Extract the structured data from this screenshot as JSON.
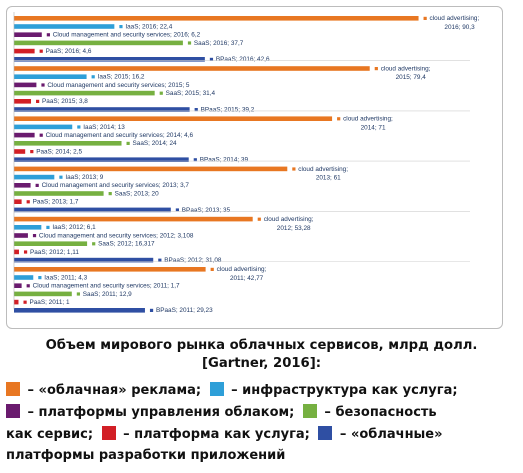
{
  "chart_data": {
    "type": "bar",
    "orientation": "horizontal",
    "groups": [
      {
        "year": "2016",
        "bars": [
          {
            "label": "cloud advertising; 2016; 90,3",
            "value": 90.3
          },
          {
            "label": "IaaS; 2016; 22,4",
            "value": 22.4
          },
          {
            "label": "Cloud management and security services; 2016; 6,2",
            "value": 6.2
          },
          {
            "label": "SaaS; 2016; 37,7",
            "value": 37.7
          },
          {
            "label": "PaaS; 2016; 4,6",
            "value": 4.6
          },
          {
            "label": "BPaaS; 2016; 42,6",
            "value": 42.6
          }
        ]
      },
      {
        "year": "2015",
        "bars": [
          {
            "label": "cloud advertising; 2015; 79,4",
            "value": 79.4
          },
          {
            "label": "IaaS; 2015; 16,2",
            "value": 16.2
          },
          {
            "label": "Cloud management and security services; 2015; 5",
            "value": 5
          },
          {
            "label": "SaaS; 2015; 31,4",
            "value": 31.4
          },
          {
            "label": "PaaS; 2015; 3,8",
            "value": 3.8
          },
          {
            "label": "BPaaS; 2015; 39,2",
            "value": 39.2
          }
        ]
      },
      {
        "year": "2014",
        "bars": [
          {
            "label": "cloud advertising; 2014; 71",
            "value": 71
          },
          {
            "label": "IaaS; 2014; 13",
            "value": 13
          },
          {
            "label": "Cloud management and security services; 2014; 4,6",
            "value": 4.6
          },
          {
            "label": "SaaS; 2014; 24",
            "value": 24
          },
          {
            "label": "PaaS; 2014; 2,5",
            "value": 2.5
          },
          {
            "label": "BPaaS; 2014; 39",
            "value": 39
          }
        ]
      },
      {
        "year": "2013",
        "bars": [
          {
            "label": "cloud advertising; 2013; 61",
            "value": 61
          },
          {
            "label": "IaaS; 2013; 9",
            "value": 9
          },
          {
            "label": "Cloud management and security services; 2013; 3,7",
            "value": 3.7
          },
          {
            "label": "SaaS; 2013; 20",
            "value": 20
          },
          {
            "label": "PaaS; 2013; 1,7",
            "value": 1.7
          },
          {
            "label": "BPaaS; 2013; 35",
            "value": 35
          }
        ]
      },
      {
        "year": "2012",
        "bars": [
          {
            "label": "cloud advertising; 2012; 53,28",
            "value": 53.28
          },
          {
            "label": "IaaS; 2012; 6,1",
            "value": 6.1
          },
          {
            "label": "Cloud management and security services; 2012; 3,108",
            "value": 3.108
          },
          {
            "label": "SaaS; 2012; 16,317",
            "value": 16.317
          },
          {
            "label": "PaaS; 2012; 1,11",
            "value": 1.11
          },
          {
            "label": "BPaaS; 2012; 31,08",
            "value": 31.08
          }
        ]
      },
      {
        "year": "2011",
        "bars": [
          {
            "label": "cloud advertising; 2011; 42,77",
            "value": 42.77
          },
          {
            "label": "IaaS; 2011; 4,3",
            "value": 4.3
          },
          {
            "label": "Cloud management and security services; 2011; 1,7",
            "value": 1.7
          },
          {
            "label": "SaaS; 2011; 12,9",
            "value": 12.9
          },
          {
            "label": "PaaS; 2011; 1",
            "value": 1
          },
          {
            "label": "BPaaS; 2011; 29,23",
            "value": 29.23
          }
        ]
      }
    ],
    "series_colors": [
      "#e87722",
      "#2e9fd8",
      "#6a1b6e",
      "#76b041",
      "#d21f26",
      "#2f4fa3"
    ],
    "grid": false,
    "xlim": [
      0,
      100
    ]
  },
  "caption": {
    "line1": "Объем мирового рынка облачных сервисов, млрд долл.",
    "line2": "[Gartner, 2016]:"
  },
  "legend": {
    "items": [
      {
        "text": " – «облачная» реклама;",
        "color": "#e87722"
      },
      {
        "text": " – инфраструктура как услуга;",
        "color": "#2e9fd8"
      },
      {
        "text": " – платформы управления облаком;",
        "color": "#6a1b6e"
      },
      {
        "text": " – безопасность",
        "color": "#76b041"
      },
      {
        "text": " – платформа как услуга;",
        "color": "#d21f26"
      },
      {
        "text": " – «облачные»",
        "color": "#2f4fa3"
      }
    ],
    "before_item_4": "как сервис;",
    "tail": "платформы разработки приложений"
  }
}
